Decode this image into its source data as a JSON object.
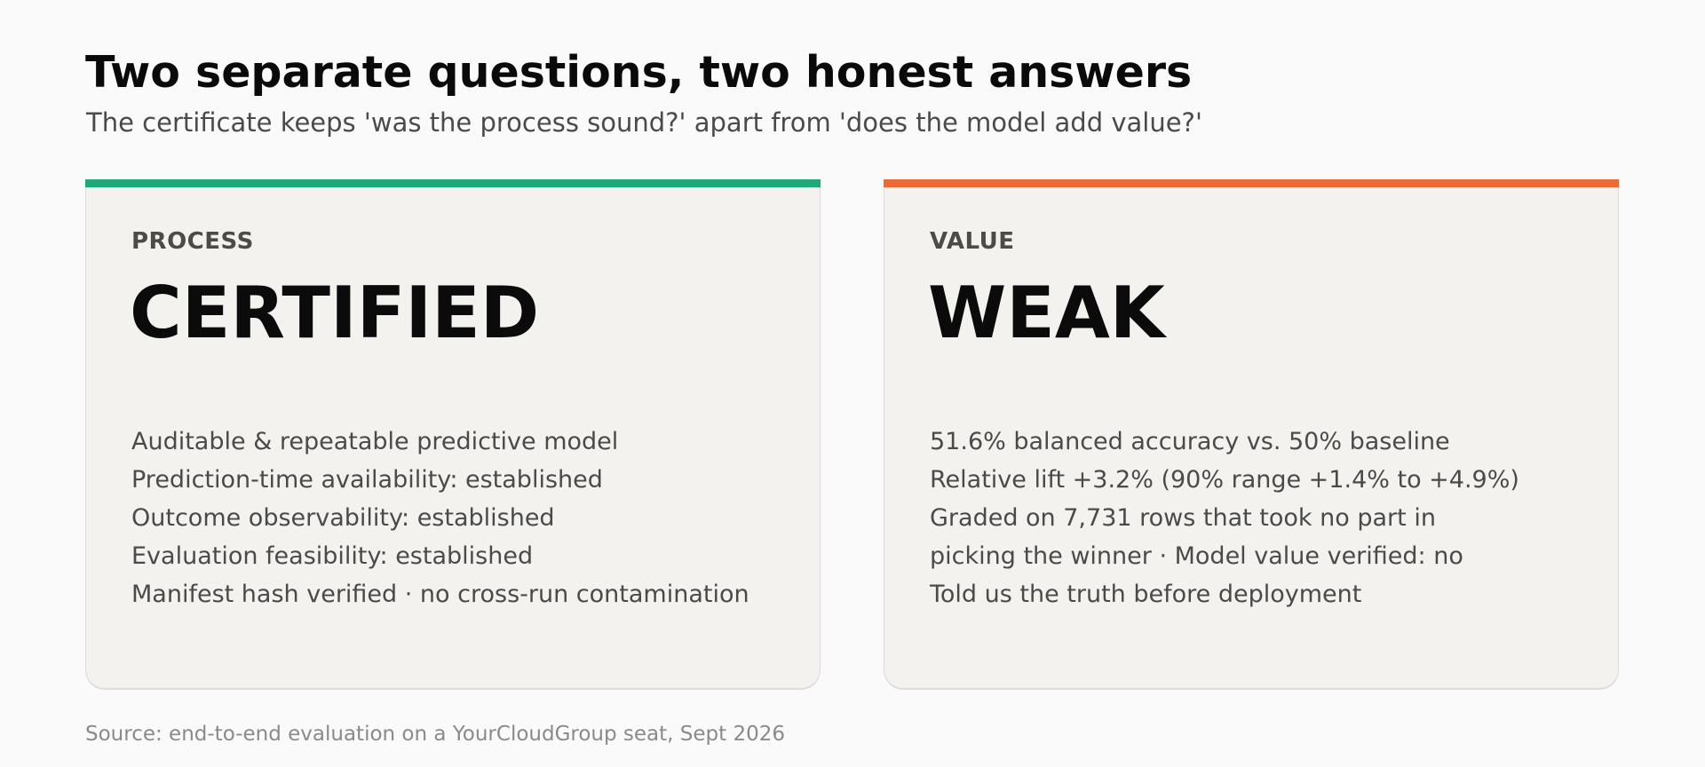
{
  "header": {
    "title": "Two separate questions, two honest answers",
    "subtitle": "The certificate keeps 'was the process sound?' apart from 'does the model add value?'"
  },
  "cards": [
    {
      "kicker": "PROCESS",
      "verdict": "CERTIFIED",
      "accent": "#1fa97a",
      "lines": [
        "Auditable & repeatable predictive model",
        "Prediction-time availability: established",
        "Outcome observability: established",
        "Evaluation feasibility: established",
        "Manifest hash verified · no cross-run contamination"
      ]
    },
    {
      "kicker": "VALUE",
      "verdict": "WEAK",
      "accent": "#ec6a35",
      "lines": [
        "51.6% balanced accuracy vs. 50% baseline",
        "Relative lift +3.2% (90% range +1.4% to +4.9%)",
        "Graded on 7,731 rows that took no part in",
        "picking the winner · Model value verified: no",
        "Told us the truth before deployment"
      ]
    }
  ],
  "footer": {
    "source": "Source: end-to-end evaluation on a YourCloudGroup seat, Sept 2026"
  }
}
